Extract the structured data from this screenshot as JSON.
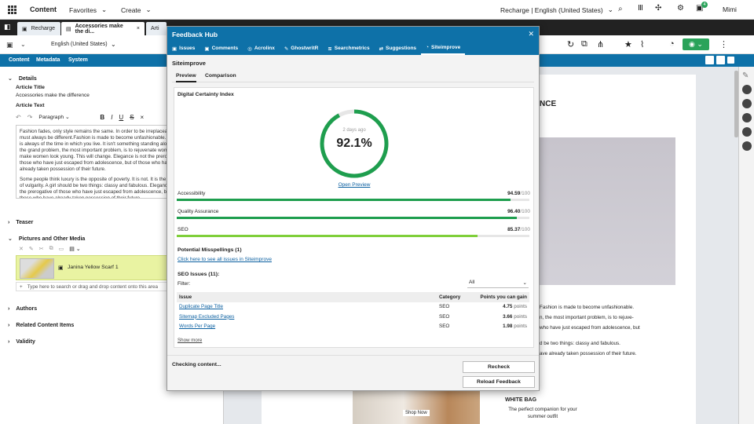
{
  "topbar": {
    "app": "Content",
    "favorites": "Favorites",
    "create": "Create",
    "site": "Recharge | English (United States)",
    "user": "Mimi",
    "notif_count": "4"
  },
  "tabs": [
    {
      "label": "Recharge"
    },
    {
      "label": "Accessories make the di..."
    },
    {
      "label": "Arti"
    }
  ],
  "toolbar": {
    "locale": "English (United States)"
  },
  "subtabs": [
    "Content",
    "Metadata",
    "System"
  ],
  "left": {
    "details": "Details",
    "title_label": "Article Title",
    "title_value": "Accessories make the difference",
    "text_label": "Article Text",
    "paragraph": "Paragraph",
    "body1": "Fashion fades, only style remains the same. In order to be irreplaceable, one must always be different.Fashion is made to become unfashionable. Fashion is always of the time in which you live. It isn't something standing alone. But the grand problem, the most important problem, is to rejuvenate women. To make women look young. This will change. Elegance is not the prerogative of those who have just escaped from adolescence, but of those who have already taken possession of their future.",
    "body2": "Some people think luxury is the opposite of poverty. It is not. It is the opposite of vulgarity. A girl should be two things: classy and fabulous. Elegance is not the prerogative of those who have just escaped from adolescence, but of those who have already taken possession of their future.",
    "teaser": "Teaser",
    "pictures": "Pictures and Other Media",
    "media_item": "Janina Yellow Scarf 1",
    "drop_placeholder": "Type here to search or drag and drop content onto this area",
    "authors": "Authors",
    "related": "Related Content Items",
    "validity": "Validity"
  },
  "preview": {
    "heading": "NCE",
    "p1a": "Fashion is made to become unfashionable.",
    "p1b": "n, the most important problem, is to rejuve-",
    "p1c": "who have just escaped from adolescence, but",
    "p2a": "d be two things: classy and fabulous.",
    "p2b": "ave already taken possession of their future.",
    "shop": "Shop Now",
    "white_bag": "WHITE BAG",
    "white_bag_sub": "The perfect companion for your summer outfit"
  },
  "modal": {
    "title": "Feedback Hub",
    "tabs": [
      "Issues",
      "Comments",
      "Acrolinx",
      "GhostwritR",
      "Searchmetrics",
      "Suggestions",
      "Siteimprove"
    ],
    "subheading": "Siteimprove",
    "view_tabs": [
      "Preview",
      "Comparison"
    ],
    "dci_title": "Digital Certainty Index",
    "dci_time": "2 days ago",
    "dci_value": "92.1%",
    "dci_fraction": 0.921,
    "open_preview": "Open Preview",
    "metrics": [
      {
        "name": "Accessibility",
        "score": "94.59",
        "max": "/100",
        "fraction": 0.9459,
        "color": "#1e9e4e"
      },
      {
        "name": "Quality Assurance",
        "score": "96.40",
        "max": "/100",
        "fraction": 0.964,
        "color": "#1e9e4e"
      },
      {
        "name": "SEO",
        "score": "85.37",
        "max": "/100",
        "fraction": 0.8537,
        "color": "#7fcf3a"
      }
    ],
    "misspellings_title": "Potential Misspellings (1)",
    "misspellings_link": "Click here to see all issues in Siteimprove",
    "seo_title": "SEO Issues (11):",
    "filter_label": "Filter:",
    "filter_value": "All",
    "table_headers": [
      "Issue",
      "Category",
      "Points you can gain"
    ],
    "table_rows": [
      {
        "issue": "Duplicate Page Title",
        "category": "SEO",
        "points": "4.75",
        "unit": "points"
      },
      {
        "issue": "Sitemap Excluded Pages",
        "category": "SEO",
        "points": "3.66",
        "unit": "points"
      },
      {
        "issue": "Words Per Page",
        "category": "SEO",
        "points": "1.98",
        "unit": "points"
      }
    ],
    "show_more": "Show more",
    "status": "Checking content...",
    "recheck": "Recheck",
    "reload": "Reload Feedback"
  }
}
